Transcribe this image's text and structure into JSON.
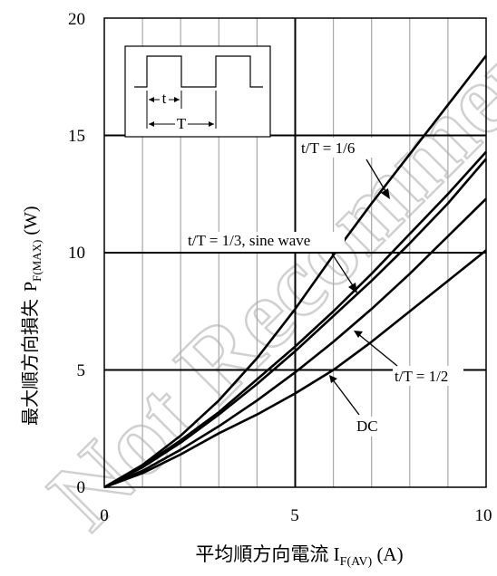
{
  "chart_data": {
    "type": "line",
    "ylabel_main": "最大順方向損失",
    "ylabel_sym": "P",
    "ylabel_sub": "F(MAX)",
    "ylabel_unit": " (W)",
    "xlabel_main": "平均順方向電流 I",
    "xlabel_sub": "F(AV)",
    "xlabel_unit": " (A)",
    "xlim": [
      0,
      10
    ],
    "ylim": [
      0,
      20
    ],
    "xticks": [
      "0",
      "5",
      "10"
    ],
    "yticks": [
      "0",
      "5",
      "10",
      "15",
      "20"
    ],
    "grid": true,
    "watermark": "Not Recommended",
    "series": [
      {
        "name": "DC",
        "x": [
          0,
          1,
          2,
          3,
          4,
          5,
          6,
          7,
          8,
          9,
          10
        ],
        "y": [
          0,
          0.6,
          1.4,
          2.3,
          3.1,
          4.0,
          5.0,
          6.2,
          7.5,
          8.8,
          10.1
        ]
      },
      {
        "name": "t/T = 1/2",
        "x": [
          0,
          1,
          2,
          3,
          4,
          5,
          6,
          7,
          8,
          9,
          10
        ],
        "y": [
          0,
          0.7,
          1.6,
          2.6,
          3.7,
          4.9,
          6.2,
          7.6,
          9.1,
          10.7,
          12.3
        ]
      },
      {
        "name": "t/T = 1/3, sine wave",
        "x": [
          0,
          1,
          2,
          3,
          4,
          5,
          6,
          7,
          8,
          9,
          10
        ],
        "y": [
          0,
          0.85,
          1.9,
          3.1,
          4.4,
          5.8,
          7.3,
          8.8,
          10.4,
          12.1,
          14.0
        ]
      },
      {
        "name": "",
        "x": [
          0,
          1,
          2,
          3,
          4,
          5,
          6,
          7,
          8,
          9,
          10
        ],
        "y": [
          0,
          0.9,
          2.0,
          3.2,
          4.6,
          6.0,
          7.5,
          9.1,
          10.8,
          12.5,
          14.3
        ]
      },
      {
        "name": "t/T = 1/6",
        "x": [
          0,
          1,
          2,
          3,
          4,
          5,
          6,
          7,
          8,
          9,
          10
        ],
        "y": [
          0,
          0.95,
          2.2,
          3.7,
          5.5,
          7.6,
          9.9,
          12.1,
          14.2,
          16.3,
          18.4
        ]
      }
    ],
    "annotations": [
      "t/T = 1/6",
      "t/T = 1/3, sine wave",
      "t/T = 1/2",
      "DC"
    ],
    "inset_labels": {
      "t": "t",
      "T": "T"
    }
  }
}
